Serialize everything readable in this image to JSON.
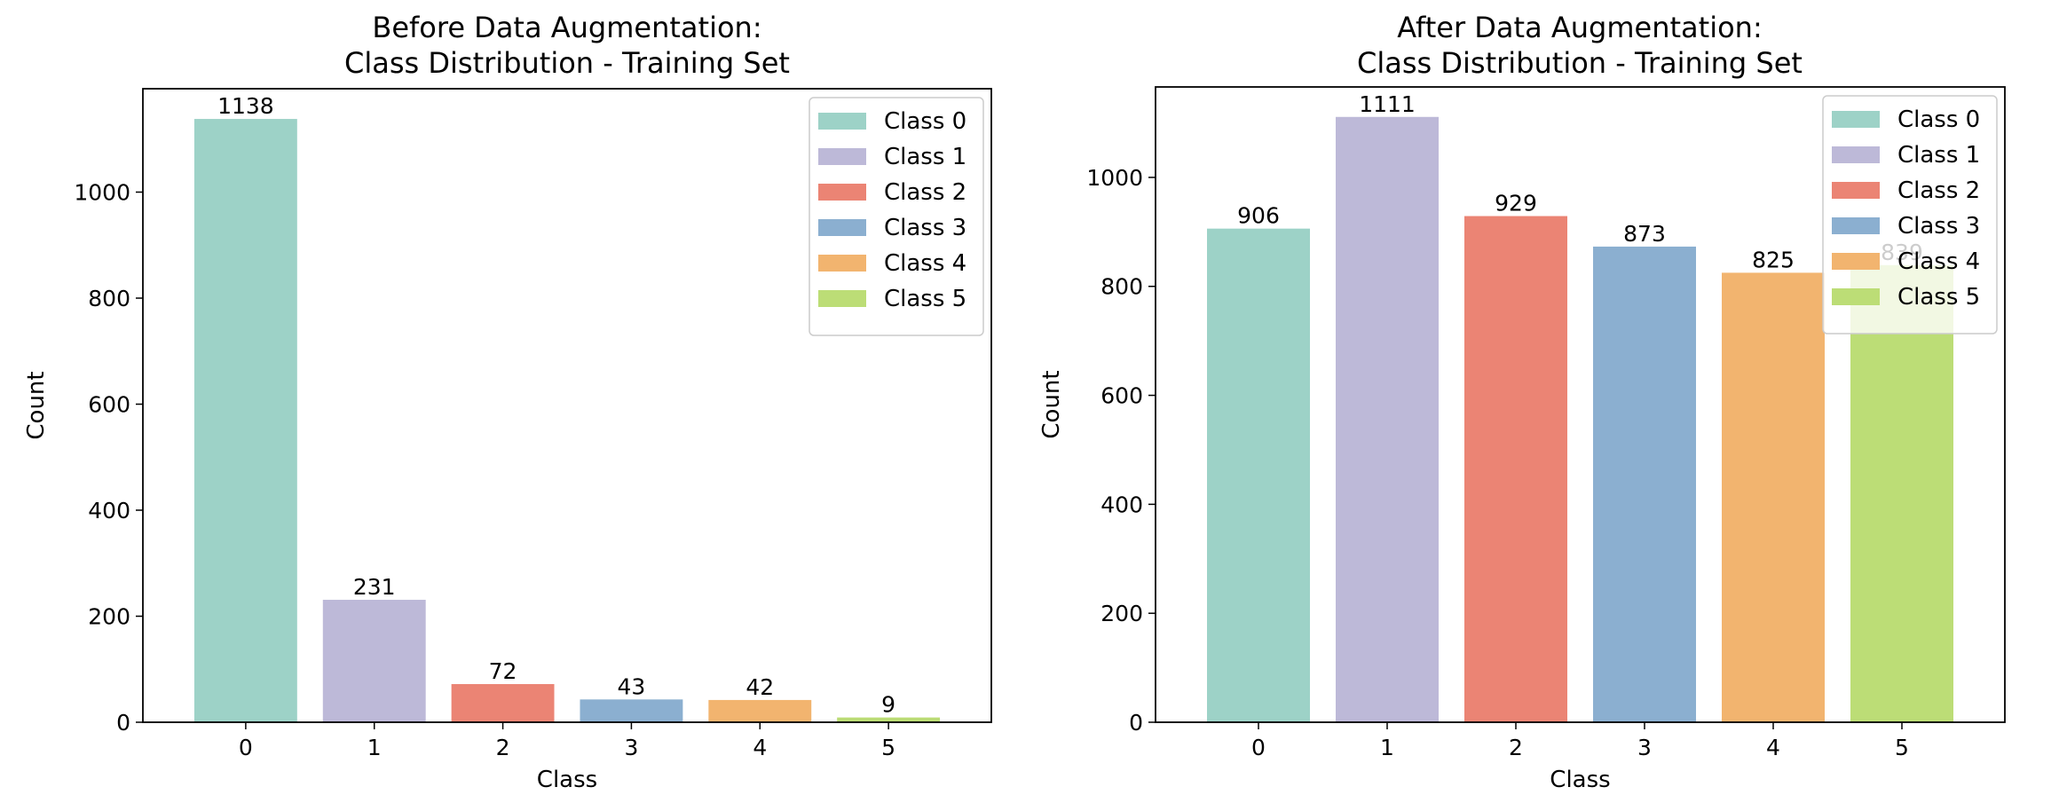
{
  "chart_data": [
    {
      "type": "bar",
      "title": [
        "Before Data Augmentation:",
        "Class Distribution - Training Set"
      ],
      "xlabel": "Class",
      "ylabel": "Count",
      "categories": [
        "0",
        "1",
        "2",
        "3",
        "4",
        "5"
      ],
      "values": [
        1138,
        231,
        72,
        43,
        42,
        9
      ],
      "data_labels": [
        "1138",
        "231",
        "72",
        "43",
        "42",
        "9"
      ],
      "ylim": [
        0,
        1195
      ],
      "yticks": [
        0,
        200,
        400,
        600,
        800,
        1000
      ],
      "legend": [
        "Class 0",
        "Class 1",
        "Class 2",
        "Class 3",
        "Class 4",
        "Class 5"
      ],
      "legend_position": "top-right",
      "grid": false
    },
    {
      "type": "bar",
      "title": [
        "After Data Augmentation:",
        "Class Distribution - Training Set"
      ],
      "xlabel": "Class",
      "ylabel": "Count",
      "categories": [
        "0",
        "1",
        "2",
        "3",
        "4",
        "5"
      ],
      "values": [
        906,
        1111,
        929,
        873,
        825,
        839
      ],
      "data_labels": [
        "906",
        "1111",
        "929",
        "873",
        "825",
        "839"
      ],
      "ylim": [
        0,
        1166
      ],
      "yticks": [
        0,
        200,
        400,
        600,
        800,
        1000
      ],
      "legend": [
        "Class 0",
        "Class 1",
        "Class 2",
        "Class 3",
        "Class 4",
        "Class 5"
      ],
      "legend_position": "top-right",
      "grid": false
    }
  ],
  "colors": [
    "#9dd2c7",
    "#bdb9d8",
    "#eb8474",
    "#8bafd0",
    "#f2b46f",
    "#bcdd76"
  ]
}
